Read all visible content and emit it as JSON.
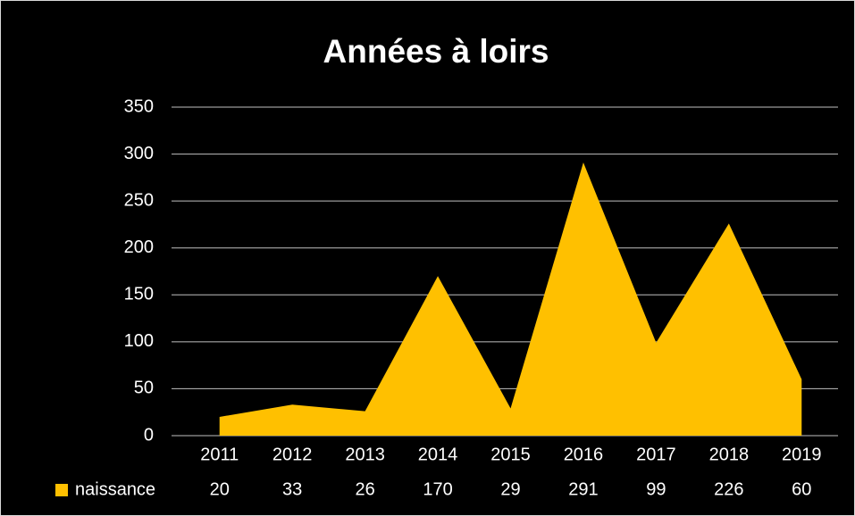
{
  "chart_data": {
    "type": "area",
    "title": "Années à loirs",
    "categories": [
      "2011",
      "2012",
      "2013",
      "2014",
      "2015",
      "2016",
      "2017",
      "2018",
      "2019"
    ],
    "series": [
      {
        "name": "naissance",
        "color": "#ffc000",
        "values": [
          20,
          33,
          26,
          170,
          29,
          291,
          99,
          226,
          60
        ]
      }
    ],
    "ylim": [
      0,
      350
    ],
    "yticks": [
      0,
      50,
      100,
      150,
      200,
      250,
      300,
      350
    ],
    "grid": true,
    "data_table": true
  }
}
